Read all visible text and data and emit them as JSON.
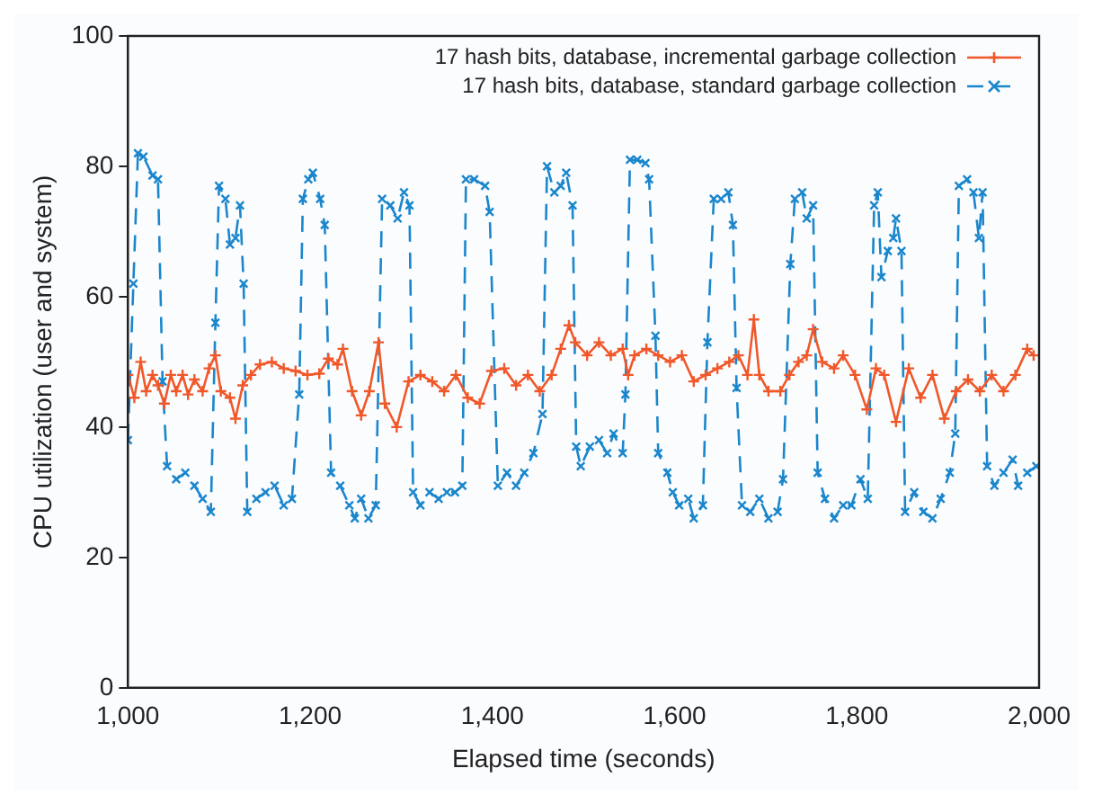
{
  "chart_data": {
    "type": "line",
    "xlabel": "Elapsed time (seconds)",
    "ylabel": "CPU utilization (user and system)",
    "xlim": [
      1000,
      2000
    ],
    "xticks": [
      {
        "value": 1000,
        "label": "1,000"
      },
      {
        "value": 1200,
        "label": "1,200"
      },
      {
        "value": 1400,
        "label": "1,400"
      },
      {
        "value": 1600,
        "label": "1,600"
      },
      {
        "value": 1800,
        "label": "1,800"
      },
      {
        "value": 2000,
        "label": "2,000"
      }
    ],
    "ylim": [
      0,
      100
    ],
    "yticks": [
      0,
      20,
      40,
      60,
      80,
      100
    ],
    "grid": false,
    "legend": "top right",
    "series": [
      {
        "name": "17 hash bits, database, incremental garbage collection",
        "color": "#f0582a",
        "marker": "cross",
        "line_style": "solid",
        "x": [
          1000,
          1007,
          1014,
          1020,
          1027,
          1033,
          1040,
          1047,
          1053,
          1060,
          1066,
          1073,
          1082,
          1089,
          1096,
          1102,
          1112,
          1118,
          1126,
          1135,
          1145,
          1158,
          1171,
          1184,
          1197,
          1210,
          1220,
          1230,
          1236,
          1246,
          1256,
          1265,
          1275,
          1282,
          1295,
          1308,
          1321,
          1334,
          1347,
          1360,
          1373,
          1386,
          1399,
          1413,
          1426,
          1439,
          1452,
          1465,
          1475,
          1484,
          1491,
          1504,
          1517,
          1530,
          1543,
          1549,
          1556,
          1569,
          1582,
          1595,
          1608,
          1621,
          1634,
          1647,
          1660,
          1670,
          1680,
          1687,
          1693,
          1703,
          1716,
          1726,
          1736,
          1745,
          1752,
          1762,
          1775,
          1785,
          1798,
          1811,
          1821,
          1830,
          1843,
          1857,
          1870,
          1883,
          1896,
          1909,
          1922,
          1935,
          1948,
          1961,
          1974,
          1987,
          1994
        ],
        "values": [
          48,
          44.5,
          50,
          45.5,
          48,
          46.4,
          43.6,
          48,
          45.5,
          48,
          45,
          47.3,
          45.5,
          49,
          51,
          45.5,
          44.5,
          41.3,
          46.4,
          48,
          49.6,
          50,
          49,
          48.6,
          48,
          48.2,
          50.5,
          49.6,
          52,
          45.5,
          41.8,
          45.5,
          53,
          43.6,
          40,
          47,
          48,
          47,
          45.5,
          48,
          44.5,
          43.6,
          48.6,
          49,
          46.4,
          48,
          45.5,
          48,
          52,
          55.6,
          53,
          51,
          53,
          51,
          52,
          48,
          51,
          52,
          51,
          50,
          51,
          47,
          48,
          49,
          50,
          51,
          48,
          56.5,
          48,
          45.5,
          45.5,
          48,
          50,
          51,
          55,
          50,
          49,
          51,
          48,
          42.7,
          49,
          48,
          40.8,
          49,
          44.5,
          48,
          41.3,
          45.5,
          47.3,
          45.5,
          48,
          45.5,
          48,
          52,
          51
        ]
      },
      {
        "name": "17 hash bits, database, standard garbage collection",
        "color": "#1a86cc",
        "marker": "crossRot",
        "line_style": "dashed",
        "x": [
          1000,
          1006,
          1011,
          1017,
          1027,
          1033,
          1038,
          1043,
          1053,
          1063,
          1073,
          1082,
          1091,
          1096,
          1100,
          1107,
          1112,
          1118,
          1123,
          1127,
          1131,
          1141,
          1151,
          1161,
          1171,
          1180,
          1188,
          1192,
          1198,
          1203,
          1211,
          1216,
          1223,
          1233,
          1243,
          1249,
          1256,
          1264,
          1272,
          1279,
          1288,
          1296,
          1303,
          1309,
          1313,
          1321,
          1331,
          1341,
          1350,
          1359,
          1367,
          1371,
          1380,
          1392,
          1397,
          1406,
          1416,
          1426,
          1435,
          1445,
          1455,
          1460,
          1468,
          1475,
          1481,
          1488,
          1492,
          1497,
          1507,
          1517,
          1526,
          1533,
          1543,
          1546,
          1551,
          1559,
          1568,
          1572,
          1579,
          1582,
          1592,
          1598,
          1605,
          1615,
          1621,
          1631,
          1636,
          1643,
          1651,
          1659,
          1664,
          1668,
          1674,
          1683,
          1693,
          1703,
          1713,
          1719,
          1727,
          1732,
          1740,
          1745,
          1752,
          1757,
          1765,
          1775,
          1785,
          1794,
          1804,
          1812,
          1819,
          1823,
          1827,
          1834,
          1840,
          1843,
          1849,
          1853,
          1863,
          1873,
          1883,
          1892,
          1902,
          1908,
          1912,
          1921,
          1928,
          1934,
          1938,
          1943,
          1951,
          1961,
          1971,
          1977,
          1987,
          1997
        ],
        "values": [
          38,
          62,
          82,
          81.5,
          78.6,
          78,
          47,
          34,
          32,
          33,
          31,
          29,
          27,
          56,
          77,
          75,
          68,
          69,
          74,
          62,
          27,
          29,
          30,
          31,
          28,
          29,
          45,
          75,
          78,
          79,
          75,
          71,
          33,
          31,
          28,
          26,
          29,
          26,
          28,
          75,
          74,
          72,
          76,
          74,
          30,
          28,
          30,
          29,
          30,
          30,
          31,
          78,
          78,
          77,
          73,
          31,
          33,
          31,
          33,
          36,
          42,
          80,
          76,
          77,
          79,
          74,
          37,
          34,
          37,
          38,
          36,
          39,
          36,
          45,
          81,
          81,
          80.5,
          78,
          54,
          36,
          33,
          30,
          28,
          29,
          26,
          28,
          53,
          75,
          75,
          76,
          71,
          46,
          28,
          27,
          29,
          26,
          27,
          32,
          65,
          75,
          76,
          72,
          74,
          33,
          29,
          26,
          28,
          28,
          32,
          29,
          74,
          76,
          63,
          67,
          69,
          72,
          67,
          27,
          30,
          27,
          26,
          29,
          33,
          39,
          77,
          78,
          76,
          69,
          76,
          34,
          31,
          33,
          35,
          31,
          33,
          34
        ]
      }
    ]
  }
}
